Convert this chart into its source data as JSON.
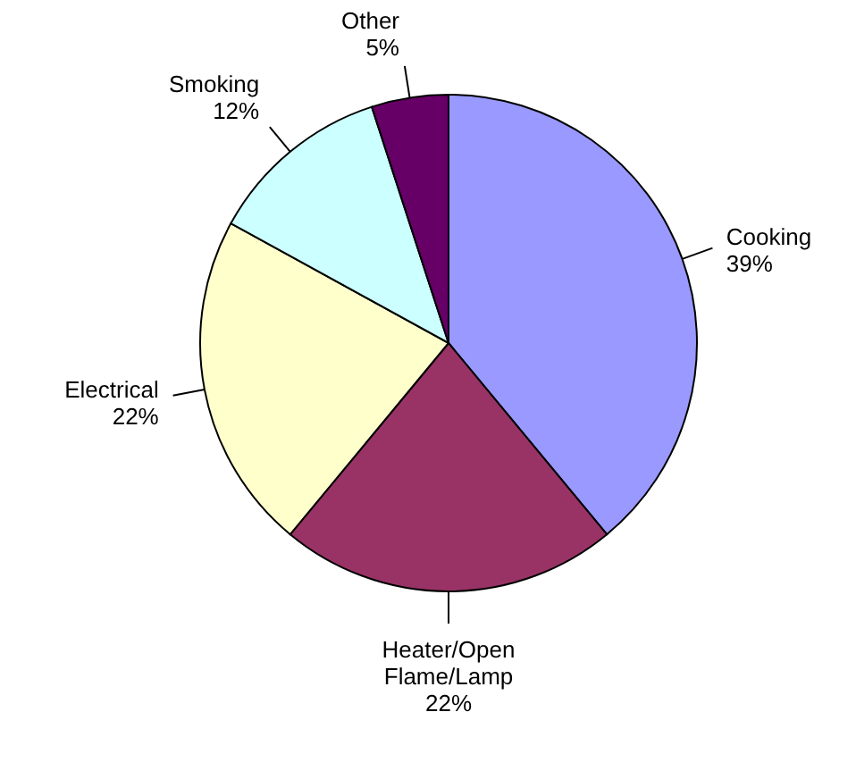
{
  "chart_data": {
    "type": "pie",
    "categories": [
      "Cooking",
      "Heater/Open Flame/Lamp",
      "Electrical",
      "Smoking",
      "Other"
    ],
    "values": [
      39,
      22,
      22,
      12,
      5
    ],
    "colors": [
      "#9999ff",
      "#993366",
      "#ffffcc",
      "#ccffff",
      "#660066"
    ],
    "value_labels": [
      "39%",
      "22%",
      "22%",
      "12%",
      "5%"
    ]
  }
}
